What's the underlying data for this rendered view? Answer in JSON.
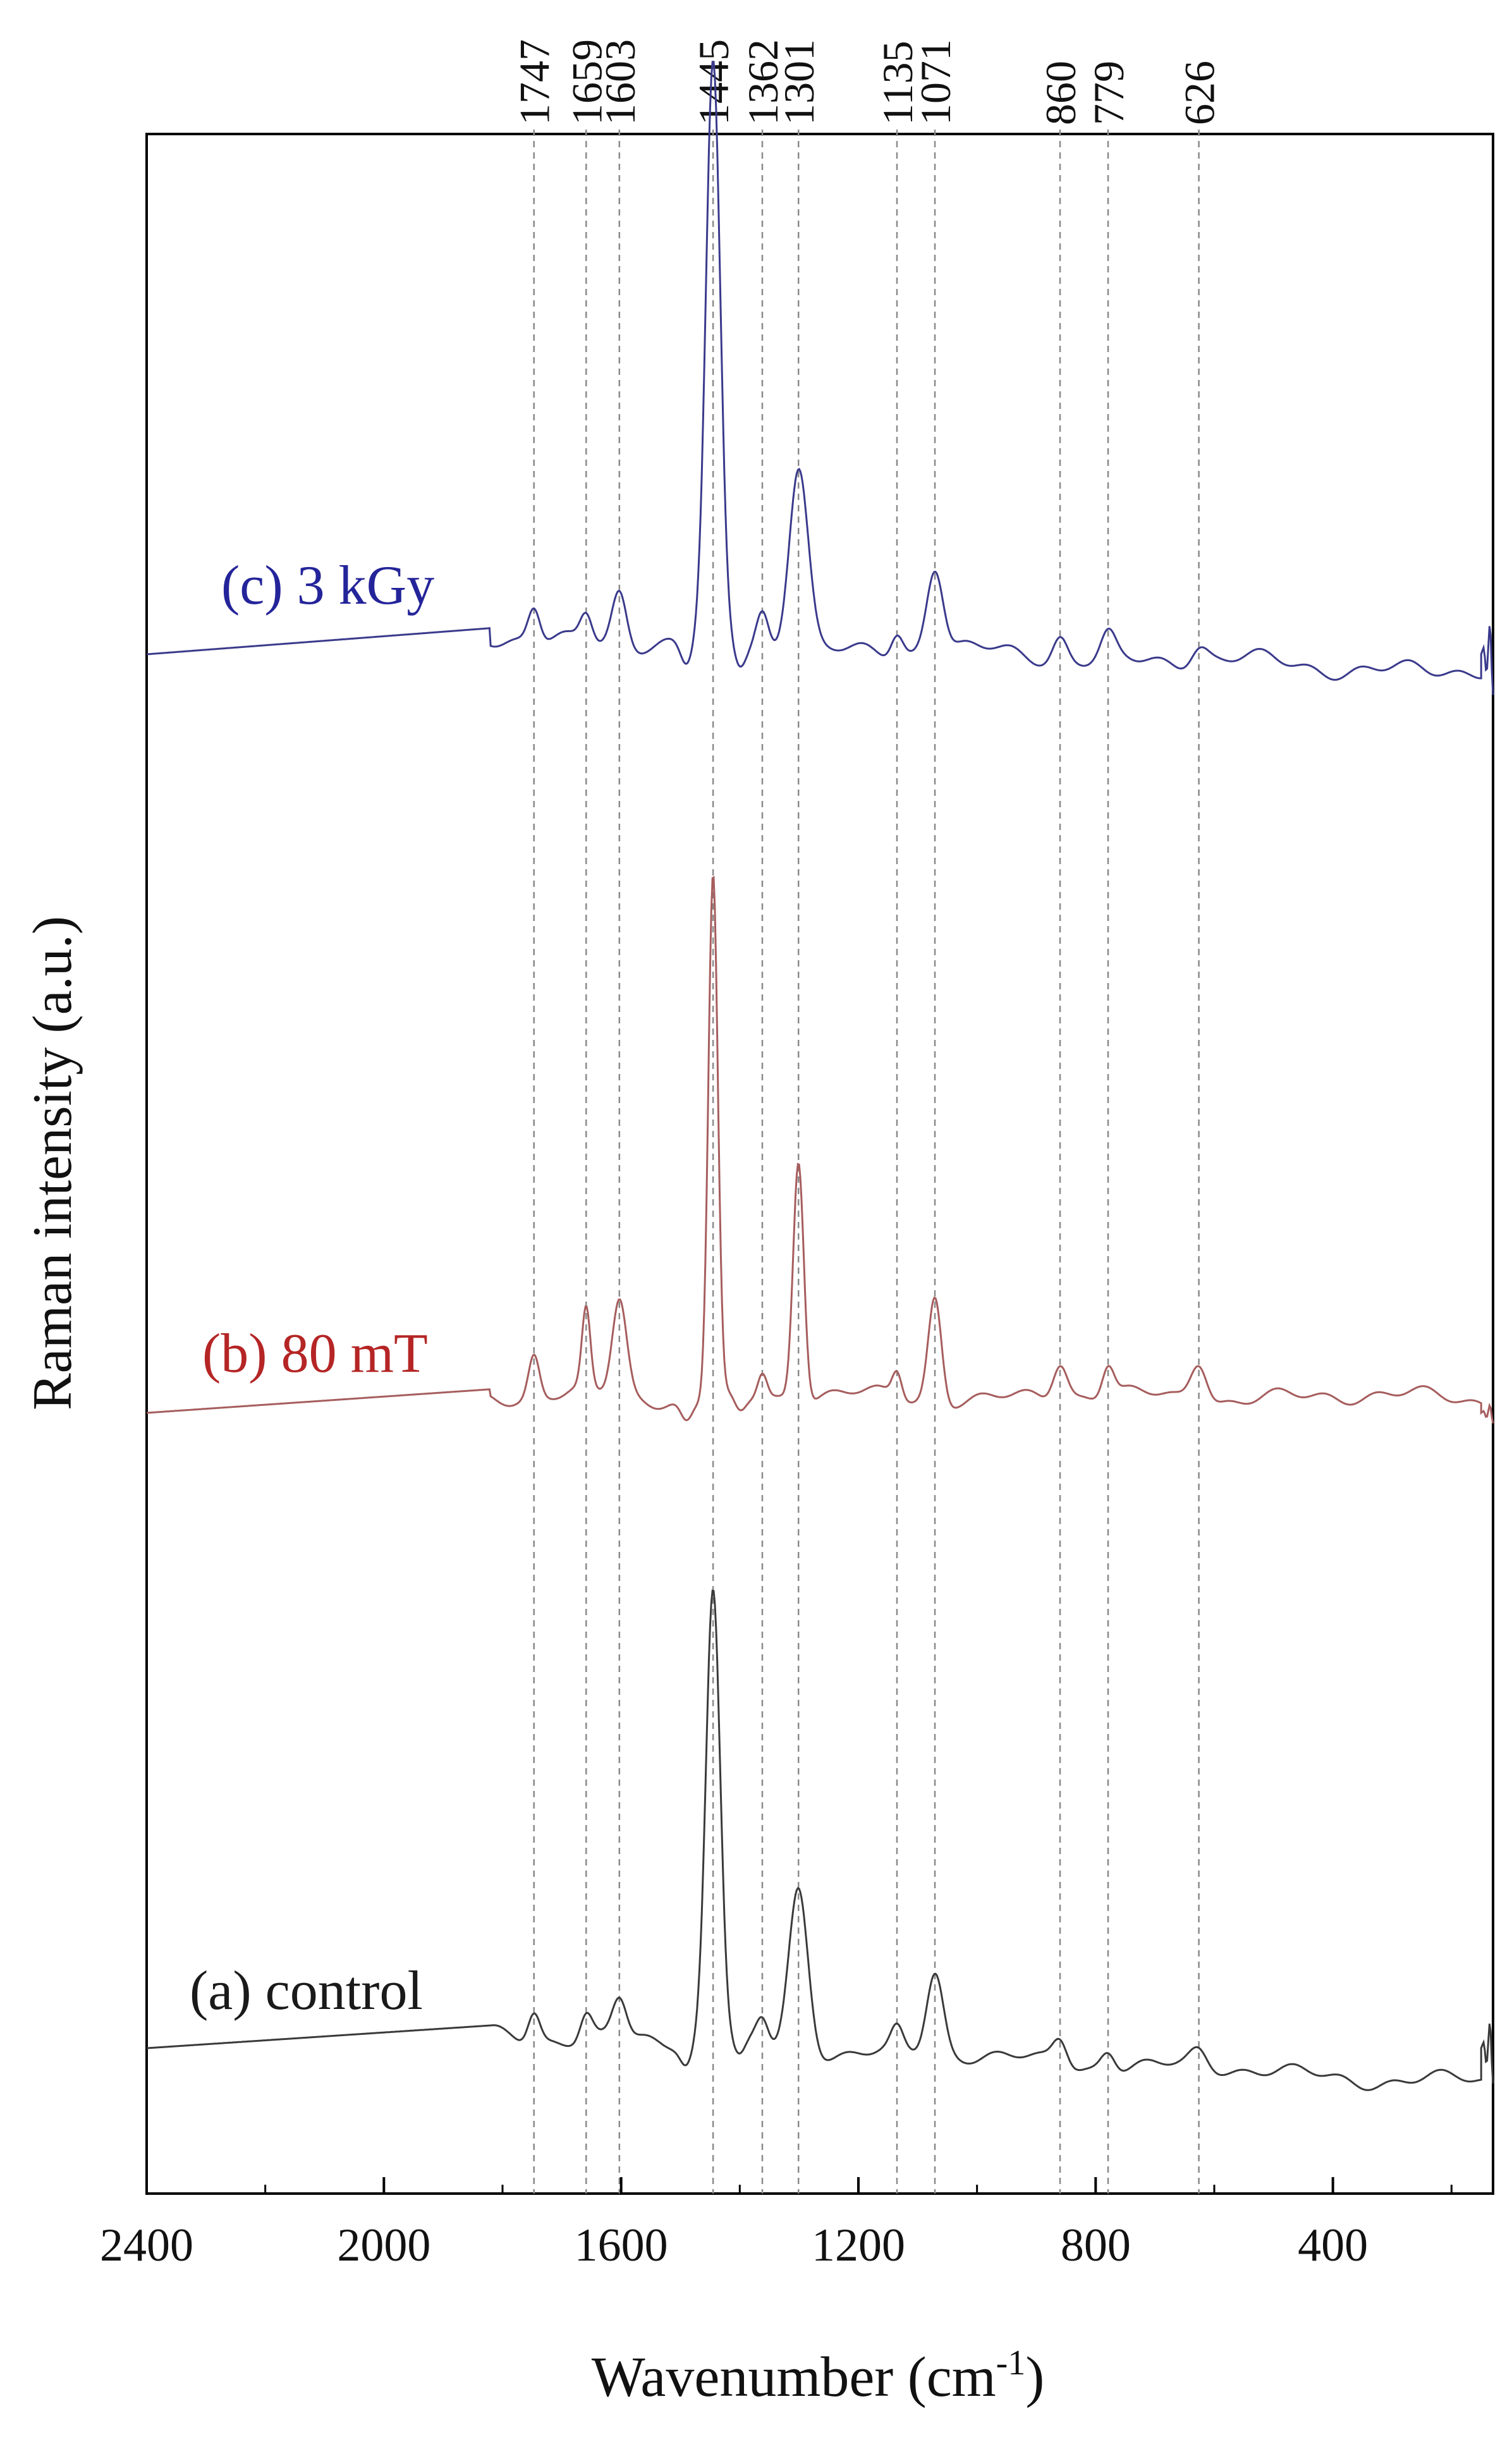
{
  "chart_data": {
    "type": "line",
    "xlabel": "Wavenumber (cm",
    "xlabel_sup": "-1",
    "xlabel_close": ")",
    "ylabel": "Raman intensity (a.u.)",
    "xlim": [
      2400,
      130
    ],
    "x_reversed": true,
    "x_ticks": [
      2400,
      2000,
      1600,
      1200,
      800,
      400
    ],
    "x_tick_labels": [
      "2400",
      "2000",
      "1600",
      "1200",
      "800",
      "400"
    ],
    "y_ticks_shown": false,
    "grid": false,
    "legend": "none (curve labels placed next to traces)",
    "peak_markers": [
      1747,
      1659,
      1603,
      1445,
      1362,
      1301,
      1135,
      1071,
      860,
      779,
      626
    ],
    "peak_marker_labels": [
      "1747",
      "1659",
      "1603",
      "1445",
      "1362",
      "1301",
      "1135",
      "1071",
      "860",
      "779",
      "626"
    ],
    "series": [
      {
        "name": "(c) 3 kGy",
        "color": "#3a3a8c",
        "label_color": "#24249a",
        "baseline_start": 0.0,
        "baseline_end": -0.06,
        "peaks": [
          [
            1747,
            0.06,
            10
          ],
          [
            1659,
            0.05,
            10
          ],
          [
            1603,
            0.09,
            12
          ],
          [
            1445,
            0.98,
            12
          ],
          [
            1362,
            0.06,
            10
          ],
          [
            1301,
            0.32,
            16
          ],
          [
            1135,
            0.04,
            10
          ],
          [
            1071,
            0.15,
            14
          ],
          [
            860,
            0.04,
            12
          ],
          [
            779,
            0.04,
            12
          ],
          [
            626,
            0.03,
            14
          ]
        ]
      },
      {
        "name": "(b) 80 mT",
        "color": "#a65d5d",
        "label_color": "#b52525",
        "baseline_start": 0.0,
        "baseline_end": 0.0,
        "peaks": [
          [
            1747,
            0.08,
            9
          ],
          [
            1659,
            0.15,
            7
          ],
          [
            1603,
            0.18,
            12
          ],
          [
            1445,
            1.0,
            8
          ],
          [
            1362,
            0.05,
            8
          ],
          [
            1301,
            0.46,
            9
          ],
          [
            1135,
            0.05,
            8
          ],
          [
            1071,
            0.2,
            11
          ],
          [
            860,
            0.07,
            12
          ],
          [
            779,
            0.06,
            10
          ],
          [
            626,
            0.08,
            14
          ]
        ]
      },
      {
        "name": "(a) control",
        "color": "#3a3a3a",
        "label_color": "#1a1a1a",
        "baseline_start": 0.0,
        "baseline_end": -0.1,
        "peaks": [
          [
            1747,
            0.06,
            10
          ],
          [
            1659,
            0.05,
            10
          ],
          [
            1603,
            0.08,
            12
          ],
          [
            1445,
            0.9,
            12
          ],
          [
            1362,
            0.05,
            10
          ],
          [
            1301,
            0.32,
            16
          ],
          [
            1135,
            0.04,
            10
          ],
          [
            1071,
            0.16,
            14
          ],
          [
            860,
            0.05,
            12
          ],
          [
            779,
            0.04,
            12
          ],
          [
            626,
            0.03,
            14
          ]
        ]
      }
    ]
  }
}
